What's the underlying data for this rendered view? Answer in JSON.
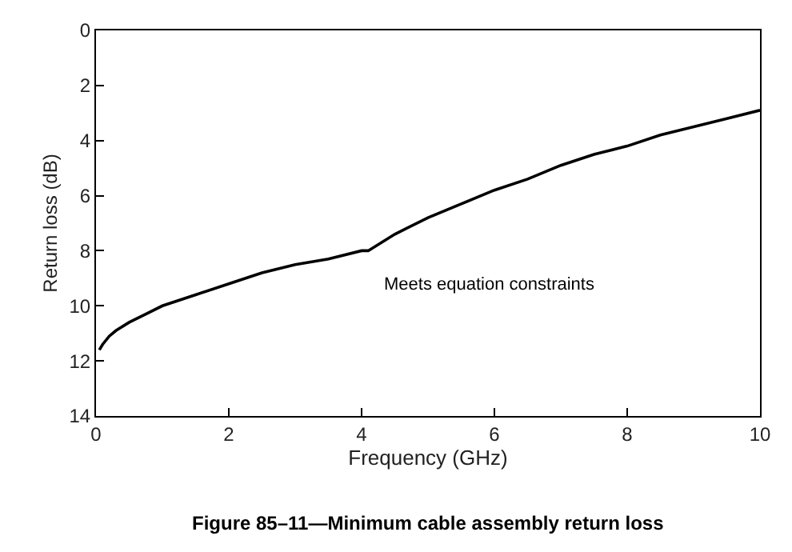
{
  "chart_data": {
    "type": "line",
    "title": "Figure 85–11—Minimum cable assembly return loss",
    "xlabel": "Frequency (GHz)",
    "ylabel": "Return loss (dB)",
    "x": [
      0.05,
      0.1,
      0.2,
      0.3,
      0.5,
      0.75,
      1,
      1.5,
      2,
      2.5,
      3,
      3.5,
      4,
      4.1,
      4.5,
      5,
      5.5,
      6,
      6.5,
      7,
      7.5,
      8,
      8.5,
      9,
      9.5,
      10
    ],
    "series": [
      {
        "color": "#000000",
        "values": [
          11.6,
          11.4,
          11.1,
          10.9,
          10.6,
          10.3,
          10.0,
          9.6,
          9.2,
          8.8,
          8.5,
          8.3,
          8.0,
          8.0,
          7.4,
          6.8,
          6.3,
          5.8,
          5.4,
          4.9,
          4.5,
          4.2,
          3.8,
          3.5,
          3.2,
          2.9
        ]
      }
    ],
    "xlim": [
      0,
      10
    ],
    "xticks": [
      0,
      2,
      4,
      6,
      8,
      10
    ],
    "ylim": [
      14,
      0
    ],
    "yticks": [
      0,
      2,
      4,
      6,
      8,
      10,
      12,
      14
    ],
    "annotations": [
      "Meets equation constraints"
    ],
    "marker": "none",
    "line_style": "solid"
  }
}
